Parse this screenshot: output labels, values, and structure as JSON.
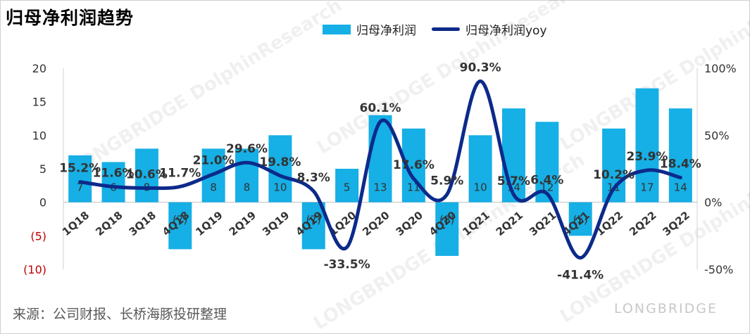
{
  "title": "归母净利润趋势",
  "source": "来源：公司财报、长桥海豚投研整理",
  "watermark": "LONGBRIDGE DolphinResearch",
  "brand": "LONGBRIDGE",
  "legend": {
    "bar_label": "归母净利润",
    "line_label": "归母净利润yoy"
  },
  "colors": {
    "bar": "#16AFE6",
    "line": "#0C2A8A",
    "negative_tick": "#C00000",
    "axis_text": "#333333"
  },
  "chart_data": {
    "type": "bar",
    "categories": [
      "1Q18",
      "2Q18",
      "3Q18",
      "4Q18",
      "1Q19",
      "2Q19",
      "3Q19",
      "4Q19",
      "1Q20",
      "2Q20",
      "3Q20",
      "4Q20",
      "1Q21",
      "2Q21",
      "3Q21",
      "4Q21",
      "1Q22",
      "2Q22",
      "3Q22"
    ],
    "series": [
      {
        "name": "归母净利润",
        "type": "bar",
        "axis": "left",
        "values": [
          7,
          6,
          8,
          -7,
          8,
          8,
          10,
          -7,
          5,
          13,
          11,
          -8,
          10,
          14,
          12,
          -5,
          11,
          17,
          14
        ],
        "labels": [
          "7",
          "6",
          "8",
          "(7)",
          "8",
          "8",
          "10",
          "(7)",
          "5",
          "13",
          "11",
          "(8)",
          "10",
          "14",
          "12",
          "(5)",
          "11",
          "17",
          "14"
        ]
      },
      {
        "name": "归母净利润yoy",
        "type": "line",
        "axis": "right",
        "values": [
          15.2,
          11.6,
          10.6,
          11.7,
          21.0,
          29.6,
          19.8,
          8.3,
          -33.5,
          60.1,
          17.6,
          5.9,
          90.3,
          5.7,
          6.4,
          -41.4,
          10.2,
          23.9,
          18.4
        ],
        "labels": [
          "15.2%",
          "11.6%",
          "10.6%",
          "11.7%",
          "21.0%",
          "29.6%",
          "19.8%",
          "8.3%",
          "-33.5%",
          "60.1%",
          "17.6%",
          "5.9%",
          "90.3%",
          "5.7%",
          "6.4%",
          "-41.4%",
          "10.2%",
          "23.9%",
          "18.4%"
        ]
      }
    ],
    "y_left": {
      "ylim": [
        -10,
        20
      ],
      "ticks": [
        20,
        15,
        10,
        5,
        0,
        -5,
        -10
      ],
      "tick_labels": [
        "20",
        "15",
        "10",
        "5",
        "0",
        "(5)",
        "(10)"
      ]
    },
    "y_right": {
      "ylim": [
        -50,
        100
      ],
      "ticks": [
        100,
        50,
        0,
        -50
      ],
      "tick_labels": [
        "100%",
        "50%",
        "0%",
        "-50%"
      ]
    },
    "grid": false,
    "legend_position": "top-center"
  }
}
